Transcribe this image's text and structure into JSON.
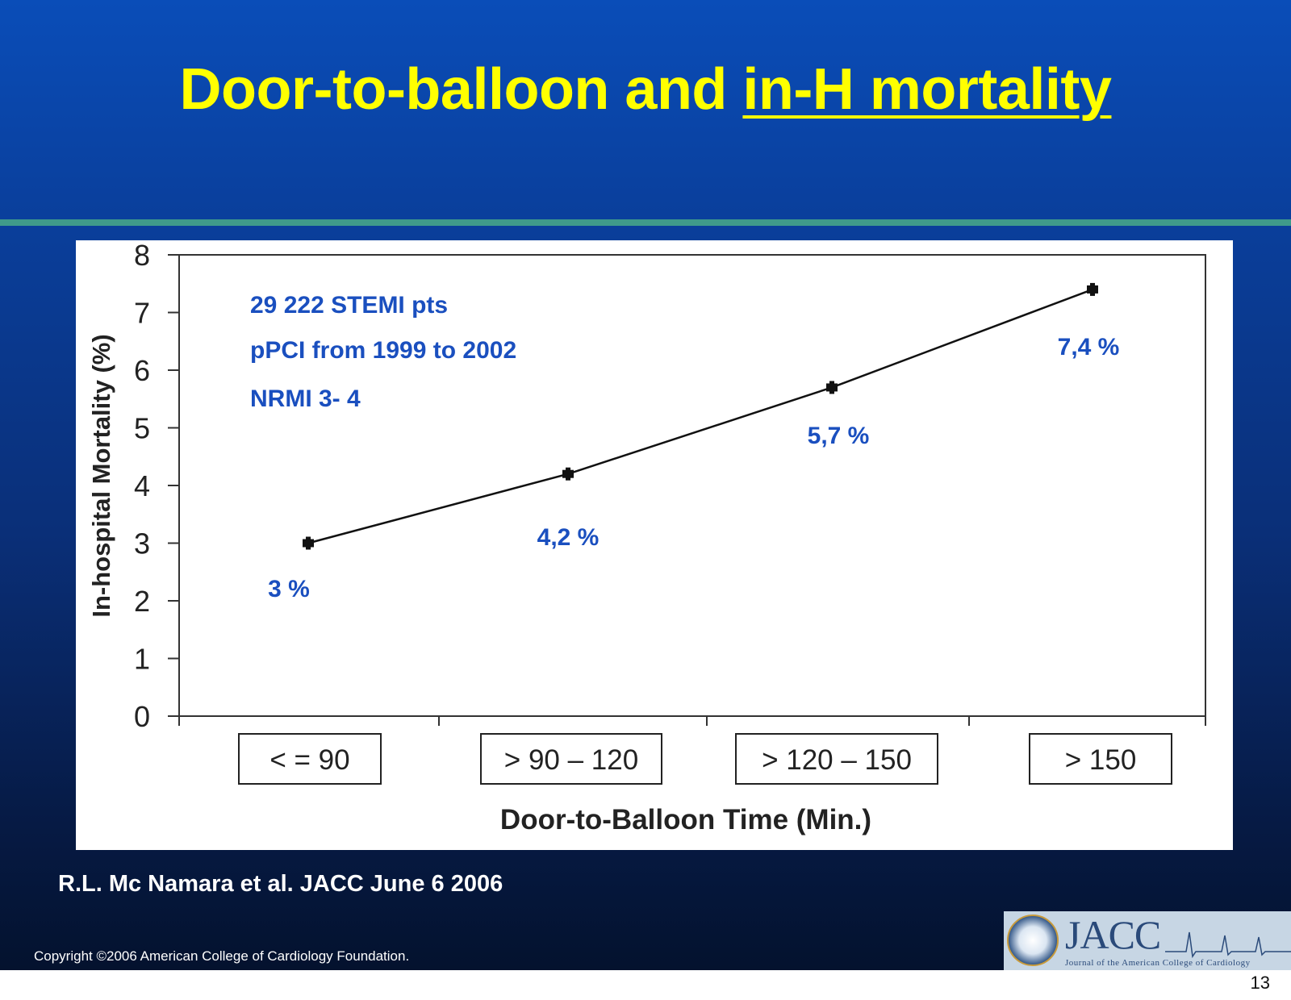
{
  "slide": {
    "title_part1": "Door-to-balloon and ",
    "title_part2": "in-H mortality",
    "citation": "R.L. Mc Namara et al. JACC June 6  2006",
    "copyright": "Copyright ©2006 American College of Cardiology Foundation.",
    "page_number": "13",
    "logo_text": "JACC",
    "logo_subtitle": "Journal of the American College of Cardiology",
    "colors": {
      "title": "#ffff00",
      "divider": "#3f9a8a",
      "label_blue": "#1a4fbf"
    }
  },
  "chart_data": {
    "type": "line",
    "title": "",
    "xlabel": "Door-to-Balloon Time (Min.)",
    "ylabel": "In-hospital Mortality (%)",
    "categories": [
      "< = 90",
      "> 90 – 120",
      "> 120 – 150",
      "> 150"
    ],
    "values": [
      3.0,
      4.2,
      5.7,
      7.4
    ],
    "data_labels": [
      "3 %",
      "4,2 %",
      "5,7 %",
      "7,4 %"
    ],
    "ylim": [
      0,
      8
    ],
    "yticks": [
      "0",
      "1",
      "2",
      "3",
      "4",
      "5",
      "6",
      "7",
      "8"
    ],
    "annotations": [
      "29 222  STEMI pts",
      "pPCI  from 1999 to 2002",
      "NRMI 3- 4"
    ],
    "grid": false
  }
}
